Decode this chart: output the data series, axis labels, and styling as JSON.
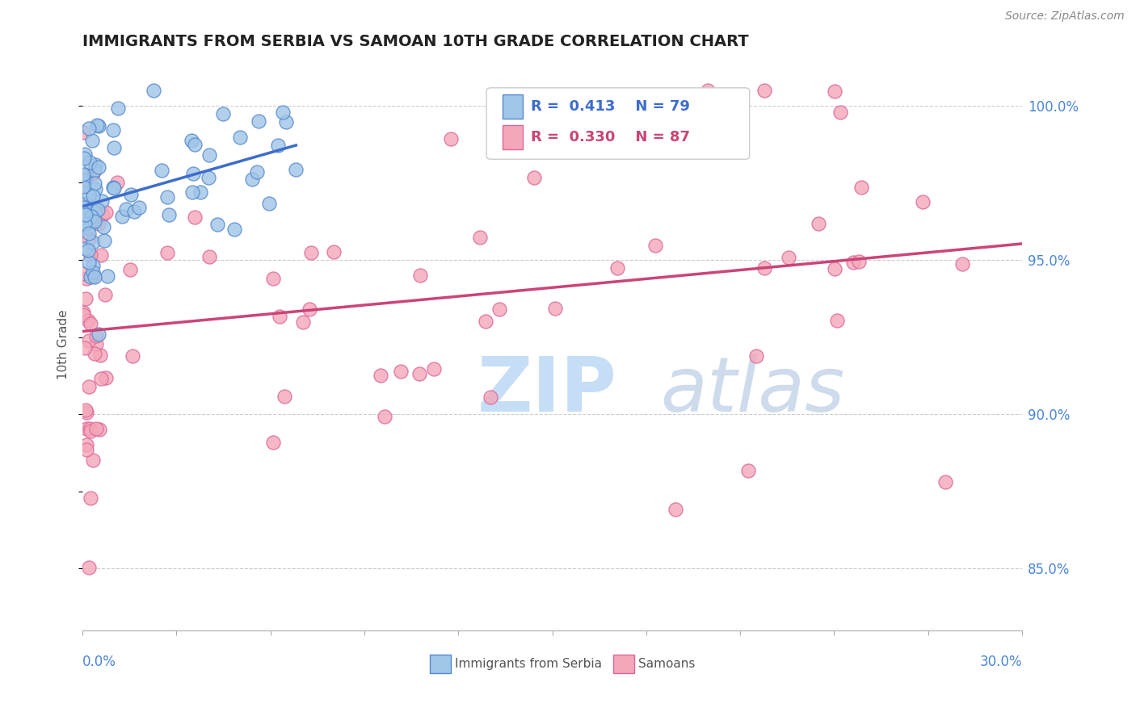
{
  "title": "IMMIGRANTS FROM SERBIA VS SAMOAN 10TH GRADE CORRELATION CHART",
  "source": "Source: ZipAtlas.com",
  "ylabel": "10th Grade",
  "yaxis_values": [
    85.0,
    90.0,
    95.0,
    100.0
  ],
  "xmin": 0.0,
  "xmax": 30.0,
  "ymin": 83.0,
  "ymax": 101.5,
  "color_blue": "#9fc5e8",
  "color_pink": "#f4a7b9",
  "color_blue_line": "#3d6dcc",
  "color_pink_line": "#cc4477",
  "color_blue_edge": "#5588cc",
  "color_pink_edge": "#dd6699"
}
